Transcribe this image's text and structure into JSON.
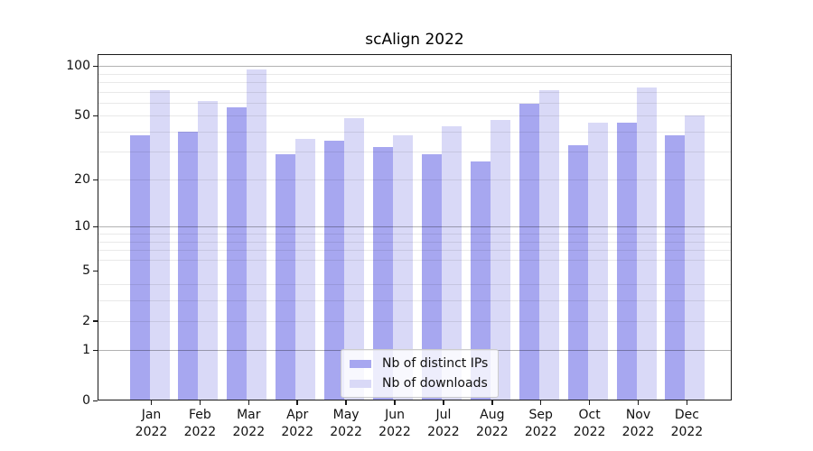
{
  "chart_data": {
    "type": "bar",
    "title": "scAlign 2022",
    "categories": [
      "Jan 2022",
      "Feb 2022",
      "Mar 2022",
      "Apr 2022",
      "May 2022",
      "Jun 2022",
      "Jul 2022",
      "Aug 2022",
      "Sep 2022",
      "Oct 2022",
      "Nov 2022",
      "Dec 2022"
    ],
    "months": [
      "Jan",
      "Feb",
      "Mar",
      "Apr",
      "May",
      "Jun",
      "Jul",
      "Aug",
      "Sep",
      "Oct",
      "Nov",
      "Dec"
    ],
    "year": "2022",
    "series": [
      {
        "name": "Nb of distinct IPs",
        "color": "#a7a7f0",
        "values": [
          38,
          40,
          56,
          29,
          35,
          32,
          29,
          26,
          59,
          33,
          45,
          38
        ]
      },
      {
        "name": "Nb of downloads",
        "color": "#d9d9f7",
        "values": [
          71,
          61,
          95,
          36,
          48,
          38,
          43,
          47,
          71,
          45,
          74,
          50
        ]
      }
    ],
    "y_axis": {
      "scale": "log10(1+y)",
      "ticks": [
        0,
        1,
        2,
        5,
        10,
        20,
        50,
        100
      ],
      "major_gridlines": [
        1,
        10,
        100
      ],
      "minor_gridlines": [
        2,
        3,
        4,
        6,
        7,
        8,
        9,
        20,
        30,
        40,
        50,
        60,
        70,
        80,
        90
      ],
      "ylim": [
        0,
        118
      ]
    },
    "xlabel": "",
    "ylabel": "",
    "grid": "on",
    "legend": {
      "position": "lower center",
      "entries": [
        "Nb of distinct IPs",
        "Nb of downloads"
      ]
    }
  }
}
